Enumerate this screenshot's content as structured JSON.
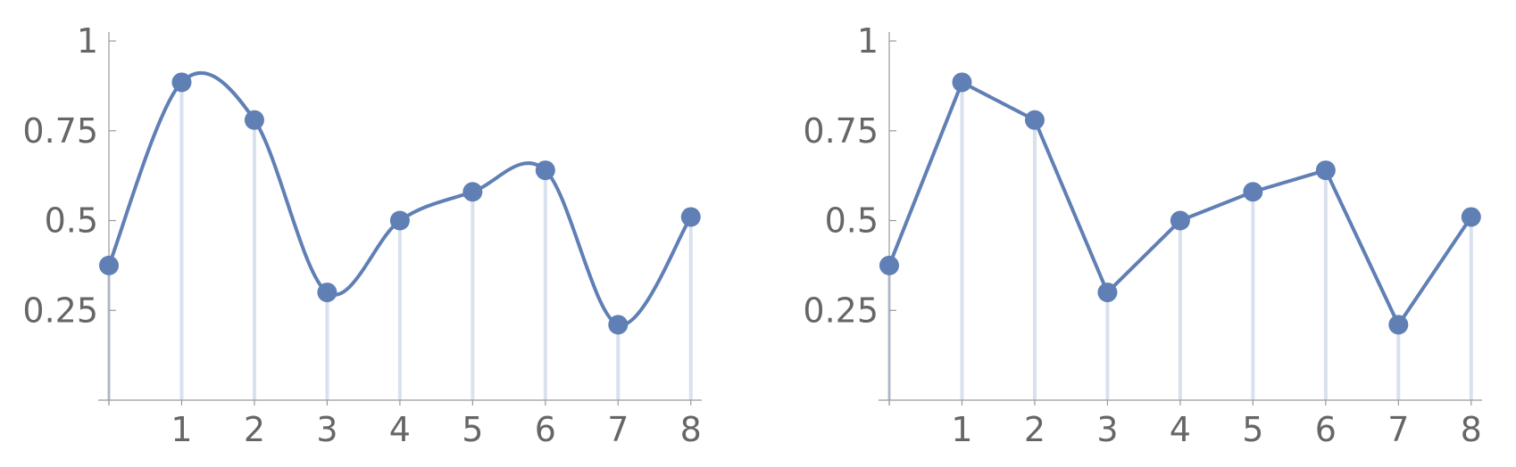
{
  "chart_data": [
    {
      "type": "line",
      "interpolation": "smooth",
      "x": [
        0,
        1,
        2,
        3,
        4,
        5,
        6,
        7,
        8
      ],
      "values": [
        0.375,
        0.885,
        0.78,
        0.3,
        0.5,
        0.58,
        0.64,
        0.21,
        0.51
      ],
      "xlim": [
        0,
        8.15
      ],
      "ylim": [
        0,
        1
      ],
      "x_ticks": [
        1,
        2,
        3,
        4,
        5,
        6,
        7,
        8
      ],
      "x_tick_labels": [
        "1",
        "2",
        "3",
        "4",
        "5",
        "6",
        "7",
        "8"
      ],
      "y_ticks": [
        0.25,
        0.5,
        0.75,
        1
      ],
      "y_tick_labels": [
        "0.25",
        "0.5",
        "0.75",
        "1"
      ],
      "stems": true,
      "grid": false,
      "color": "#5f7fb5",
      "stem_color": "#d9e1ee",
      "title": "",
      "xlabel": "",
      "ylabel": ""
    },
    {
      "type": "line",
      "interpolation": "linear",
      "x": [
        0,
        1,
        2,
        3,
        4,
        5,
        6,
        7,
        8
      ],
      "values": [
        0.375,
        0.885,
        0.78,
        0.3,
        0.5,
        0.58,
        0.64,
        0.21,
        0.51
      ],
      "xlim": [
        0,
        8.15
      ],
      "ylim": [
        0,
        1
      ],
      "x_ticks": [
        1,
        2,
        3,
        4,
        5,
        6,
        7,
        8
      ],
      "x_tick_labels": [
        "1",
        "2",
        "3",
        "4",
        "5",
        "6",
        "7",
        "8"
      ],
      "y_ticks": [
        0.25,
        0.5,
        0.75,
        1
      ],
      "y_tick_labels": [
        "0.25",
        "0.5",
        "0.75",
        "1"
      ],
      "stems": true,
      "grid": false,
      "color": "#5f7fb5",
      "stem_color": "#d9e1ee",
      "title": "",
      "xlabel": "",
      "ylabel": ""
    }
  ]
}
